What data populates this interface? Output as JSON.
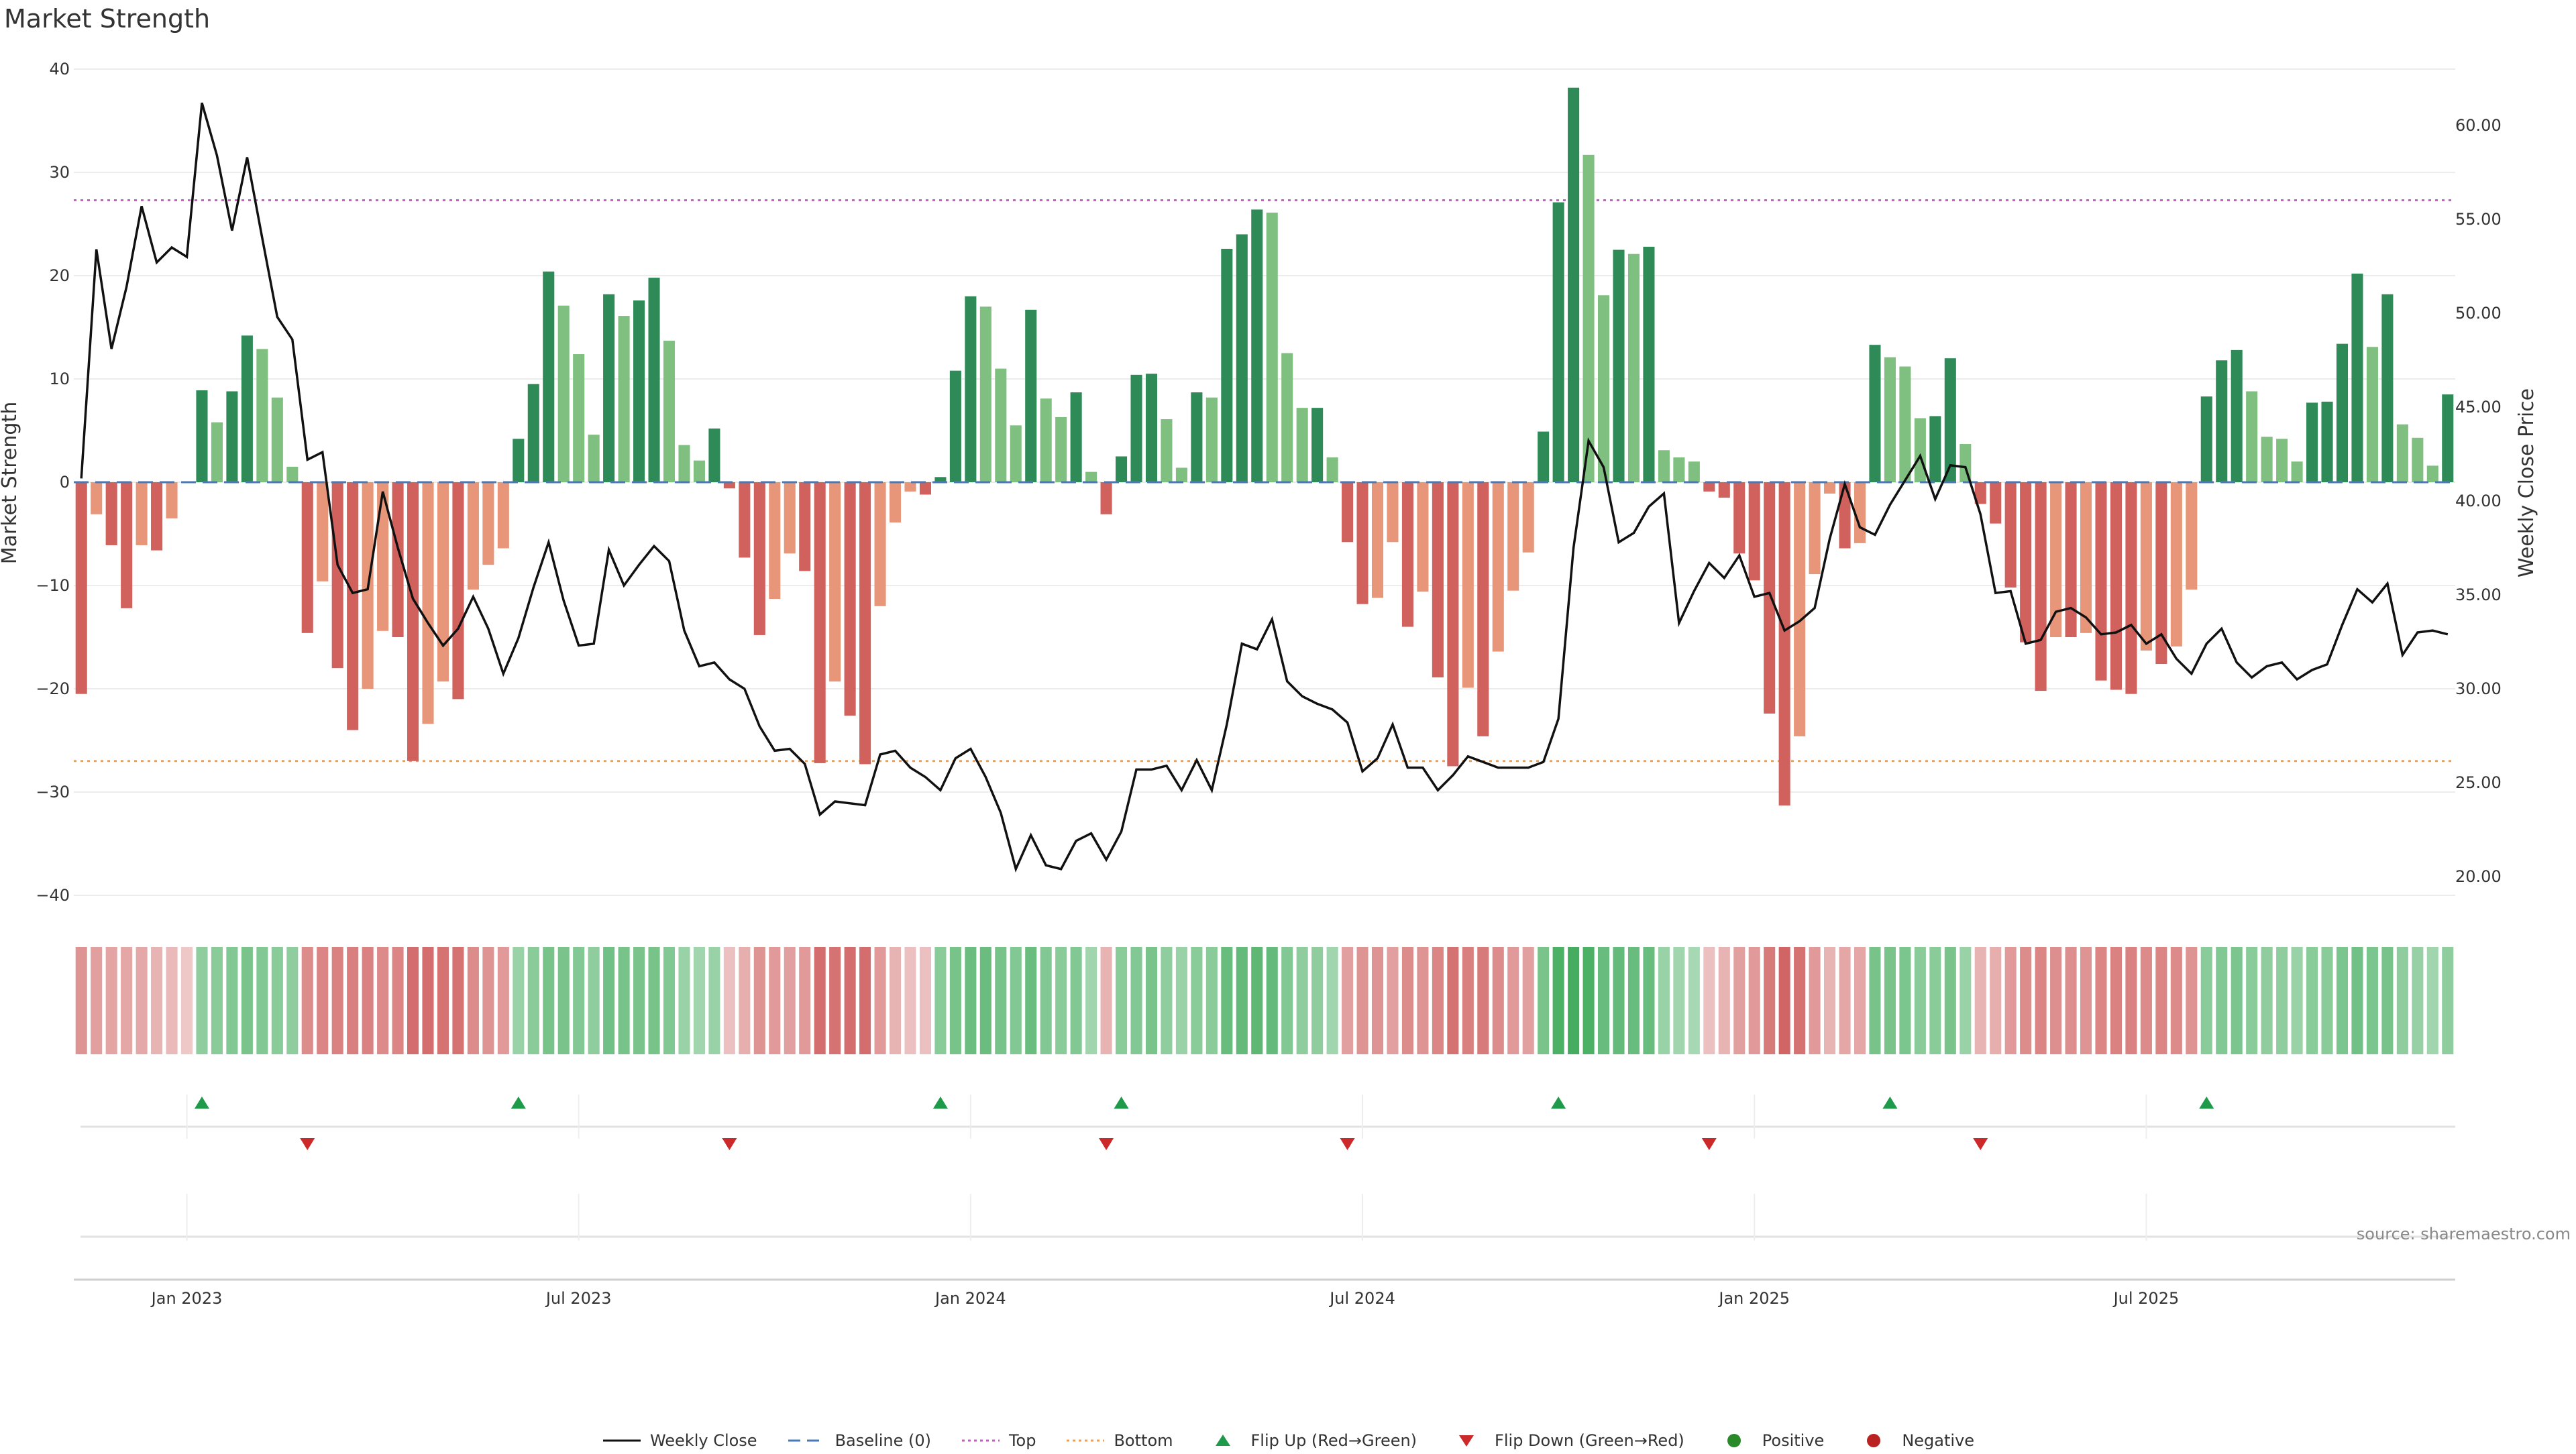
{
  "title": "Market Strength",
  "source": "source: sharemaestro.com",
  "chart_data": {
    "type": "bar",
    "title": "Market Strength",
    "ylabel_left": "Market Strength",
    "ylabel_right": "Weekly Close Price",
    "ylim_left": [
      -40,
      40
    ],
    "ylim_right": [
      19,
      63
    ],
    "yticks_left": [
      "40",
      "30",
      "20",
      "10",
      "0",
      "−10",
      "−20",
      "−30",
      "−40"
    ],
    "yticks_right": [
      "60.00",
      "55.00",
      "50.00",
      "45.00",
      "40.00",
      "35.00",
      "30.00",
      "25.00",
      "20.00"
    ],
    "xticks": [
      "Jan 2023",
      "Jul 2023",
      "Jan 2024",
      "Jul 2024",
      "Jan 2025",
      "Jul 2025"
    ],
    "reference_lines": {
      "baseline": 0,
      "top": 27.3,
      "bottom": -27
    },
    "strength": [
      -20.5,
      -3.1,
      -6.1,
      -12.2,
      -6.1,
      -6.6,
      -3.5,
      0,
      8.9,
      5.8,
      8.8,
      14.2,
      12.9,
      8.2,
      1.5,
      -14.6,
      -9.6,
      -18,
      -24,
      -20,
      -14.4,
      -15,
      -27,
      -23.4,
      -19.3,
      -21,
      -10.4,
      -8,
      -6.4,
      4.2,
      9.5,
      20.4,
      17.1,
      12.4,
      4.6,
      18.2,
      16.1,
      17.6,
      19.8,
      13.7,
      3.6,
      2.1,
      5.2,
      -0.6,
      -7.3,
      -14.8,
      -11.3,
      -6.9,
      -8.6,
      -27.2,
      -19.3,
      -22.6,
      -27.3,
      -12,
      -3.9,
      -0.9,
      -1.2,
      0.5,
      10.8,
      18,
      17,
      11,
      5.5,
      16.7,
      8.1,
      6.3,
      8.7,
      1,
      -3.1,
      2.5,
      10.4,
      10.5,
      6.1,
      1.4,
      8.7,
      8.2,
      22.6,
      24,
      26.4,
      26.1,
      12.5,
      7.2,
      7.2,
      2.4,
      -5.8,
      -11.8,
      -11.2,
      -5.8,
      -14,
      -10.6,
      -18.9,
      -27.5,
      -19.9,
      -24.6,
      -16.4,
      -10.5,
      -6.8,
      4.9,
      27.1,
      38.2,
      31.7,
      18.1,
      22.5,
      22.1,
      22.8,
      3.1,
      2.4,
      2,
      -0.9,
      -1.5,
      -6.9,
      -9.5,
      -22.4,
      -31.3,
      -24.6,
      -8.9,
      -1.1,
      -6.4,
      -5.9,
      13.3,
      12.1,
      11.2,
      6.2,
      6.4,
      12,
      3.7,
      -2.1,
      -4,
      -10.2,
      -15.5,
      -20.2,
      -15,
      -15,
      -14.6,
      -19.2,
      -20.1,
      -20.5,
      -16.3,
      -17.6,
      -15.9,
      -10.4,
      8.3,
      11.8,
      12.8,
      8.8,
      4.4,
      4.2,
      2,
      7.7,
      7.8,
      13.4,
      20.2,
      13.1,
      18.2,
      5.6,
      4.3,
      1.6,
      8.5
    ],
    "weekly_close": [
      41.2,
      53.4,
      48.1,
      51.4,
      55.7,
      52.7,
      53.5,
      53,
      61.2,
      58.4,
      54.4,
      58.3,
      54,
      49.8,
      48.6,
      42.2,
      42.6,
      36.6,
      35.1,
      35.3,
      40.5,
      37.5,
      34.8,
      33.5,
      32.3,
      33.2,
      34.9,
      33.2,
      30.8,
      32.7,
      35.4,
      37.8,
      34.7,
      32.3,
      32.4,
      37.4,
      35.5,
      36.6,
      37.6,
      36.8,
      33.1,
      31.2,
      31.4,
      30.5,
      30,
      28,
      26.7,
      26.8,
      26,
      23.3,
      24,
      23.9,
      23.8,
      26.5,
      26.7,
      25.8,
      25.3,
      24.6,
      26.3,
      26.8,
      25.3,
      23.4,
      20.4,
      22.2,
      20.6,
      20.4,
      21.9,
      22.3,
      20.9,
      22.4,
      25.7,
      25.7,
      25.9,
      24.6,
      26.2,
      24.6,
      28.1,
      32.4,
      32.1,
      33.7,
      30.4,
      29.6,
      29.2,
      28.9,
      28.2,
      25.6,
      26.3,
      28.1,
      25.8,
      25.8,
      24.6,
      25.4,
      26.4,
      26.1,
      25.8,
      25.8,
      25.8,
      26.1,
      28.4,
      37.5,
      43.2,
      41.8,
      37.8,
      38.3,
      39.7,
      40.4,
      33.5,
      35.2,
      36.7,
      35.9,
      37.1,
      34.9,
      35.1,
      33.1,
      33.6,
      34.3,
      38,
      40.9,
      38.6,
      38.2,
      39.8,
      41.1,
      42.4,
      40.1,
      41.9,
      41.8,
      39.3,
      35.1,
      35.2,
      32.4,
      32.6,
      34.1,
      34.3,
      33.8,
      32.9,
      33,
      33.4,
      32.4,
      32.9,
      31.6,
      30.8,
      32.4,
      33.2,
      31.4,
      30.6,
      31.2,
      31.4,
      30.5,
      31,
      31.3,
      33.4,
      35.3,
      34.6,
      35.6,
      31.8,
      33,
      33.1,
      32.9
    ],
    "strip_intensity": [
      0.55,
      0.45,
      0.42,
      0.4,
      0.38,
      0.3,
      0.25,
      0.15,
      0.45,
      0.5,
      0.55,
      0.6,
      0.55,
      0.5,
      0.45,
      0.6,
      0.65,
      0.68,
      0.7,
      0.68,
      0.62,
      0.65,
      0.85,
      0.85,
      0.8,
      0.8,
      0.6,
      0.55,
      0.5,
      0.4,
      0.5,
      0.62,
      0.6,
      0.55,
      0.45,
      0.65,
      0.62,
      0.6,
      0.62,
      0.55,
      0.4,
      0.35,
      0.38,
      0.2,
      0.35,
      0.55,
      0.5,
      0.45,
      0.5,
      0.85,
      0.8,
      0.85,
      0.85,
      0.5,
      0.3,
      0.2,
      0.2,
      0.5,
      0.62,
      0.7,
      0.7,
      0.62,
      0.55,
      0.7,
      0.55,
      0.5,
      0.55,
      0.35,
      0.3,
      0.5,
      0.55,
      0.6,
      0.45,
      0.4,
      0.5,
      0.5,
      0.72,
      0.75,
      0.78,
      0.75,
      0.55,
      0.45,
      0.45,
      0.35,
      0.45,
      0.55,
      0.55,
      0.45,
      0.6,
      0.55,
      0.65,
      0.8,
      0.7,
      0.75,
      0.6,
      0.5,
      0.45,
      0.6,
      0.9,
      0.95,
      0.9,
      0.72,
      0.75,
      0.72,
      0.72,
      0.4,
      0.35,
      0.3,
      0.2,
      0.3,
      0.45,
      0.5,
      0.75,
      0.9,
      0.8,
      0.5,
      0.3,
      0.4,
      0.4,
      0.62,
      0.6,
      0.58,
      0.5,
      0.5,
      0.6,
      0.4,
      0.3,
      0.35,
      0.5,
      0.6,
      0.65,
      0.58,
      0.58,
      0.55,
      0.65,
      0.68,
      0.68,
      0.62,
      0.65,
      0.62,
      0.55,
      0.5,
      0.55,
      0.58,
      0.5,
      0.45,
      0.45,
      0.38,
      0.5,
      0.5,
      0.58,
      0.65,
      0.58,
      0.62,
      0.45,
      0.42,
      0.35,
      0.45
    ],
    "flip_up_weeks": [
      8,
      29,
      57,
      69,
      98,
      120,
      141
    ],
    "flip_down_weeks": [
      15,
      43,
      68,
      84,
      108,
      126
    ],
    "ylim_strip": [
      0,
      1
    ],
    "colors": {
      "strong_green": "#2e8b57",
      "light_green": "#7fc080",
      "strong_red": "#d0615d",
      "light_red": "#e8967a",
      "price_line": "#111111",
      "baseline": "#4a7ab5",
      "top_line": "#c060c0",
      "bottom_line": "#f0a050",
      "flip_up": "#1e9a4a",
      "flip_down": "#cc2a2a",
      "positive": "#2a8a2a",
      "negative": "#bb2222"
    }
  },
  "legend": [
    {
      "label": "Weekly Close",
      "kind": "line"
    },
    {
      "label": "Baseline (0)",
      "kind": "dash"
    },
    {
      "label": "Top",
      "kind": "dot-purple"
    },
    {
      "label": "Bottom",
      "kind": "dot-orange"
    },
    {
      "label": "Flip Up (Red→Green)",
      "kind": "tri-up"
    },
    {
      "label": "Flip Down (Green→Red)",
      "kind": "tri-down"
    },
    {
      "label": "Positive",
      "kind": "dot-green"
    },
    {
      "label": "Negative",
      "kind": "dot-red"
    }
  ]
}
